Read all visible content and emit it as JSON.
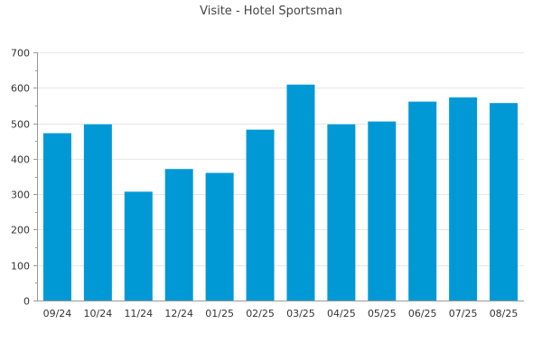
{
  "chart_data": {
    "type": "bar",
    "title": "Visite - Hotel Sportsman",
    "xlabel": "",
    "ylabel": "",
    "categories": [
      "09/24",
      "10/24",
      "11/24",
      "12/24",
      "01/25",
      "02/25",
      "03/25",
      "04/25",
      "05/25",
      "06/25",
      "07/25",
      "08/25"
    ],
    "values": [
      472,
      497,
      307,
      371,
      360,
      482,
      609,
      497,
      505,
      561,
      573,
      557
    ],
    "ylim": [
      0,
      700
    ],
    "yticks": [
      "0",
      "100",
      "200",
      "300",
      "400",
      "500",
      "600",
      "700"
    ],
    "grid": true,
    "legend": "none",
    "bar_color": "#0099d6"
  }
}
